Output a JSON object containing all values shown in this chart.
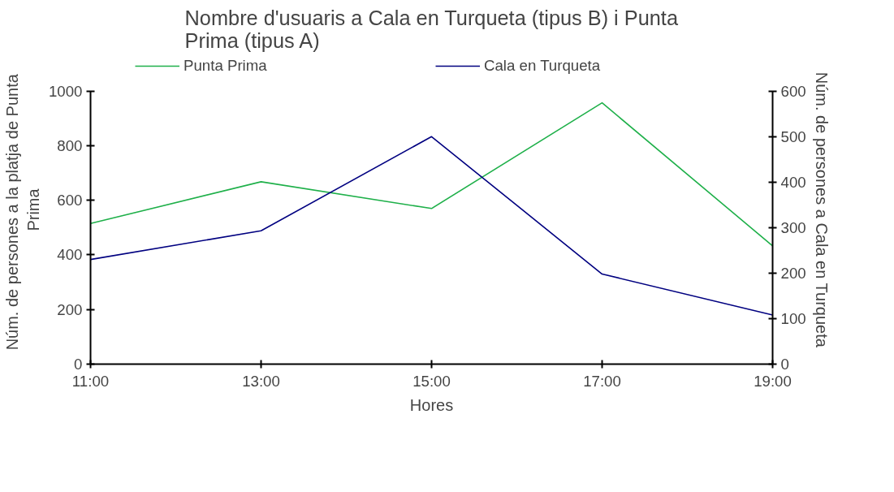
{
  "chart_data": {
    "type": "line",
    "title": "Nombre d'usuaris a Cala en Turqueta (tipus B) i Punta Prima (tipus A)",
    "xlabel": "Hores",
    "ylabel": "Núm. de persones a  la platja de Punta Prima",
    "y2label": "Núm. de persones a Cala en Turqueta",
    "x": [
      11,
      13,
      15,
      17,
      19
    ],
    "xlim": [
      11,
      19
    ],
    "xticks": [
      {
        "value": 11,
        "label": "11:00"
      },
      {
        "value": 13,
        "label": "13:00"
      },
      {
        "value": 15,
        "label": "15:00"
      },
      {
        "value": 17,
        "label": "17:00"
      },
      {
        "value": 19,
        "label": "19:00"
      }
    ],
    "ylim": [
      0,
      1000
    ],
    "yticks": [
      0,
      200,
      400,
      600,
      800,
      1000
    ],
    "y2lim": [
      0,
      600
    ],
    "y2ticks": [
      0,
      100,
      200,
      300,
      400,
      500,
      600
    ],
    "series": [
      {
        "name": "Punta Prima",
        "color": "#1fb04a",
        "values": [
          515,
          668,
          570,
          957,
          433
        ]
      },
      {
        "name": "Cala en Turqueta",
        "color": "#000080",
        "values": [
          230,
          293,
          500,
          198,
          108
        ],
        "axis": "y2"
      }
    ],
    "grid": false,
    "legend": "top",
    "marker": "none",
    "line_style": "solid"
  }
}
